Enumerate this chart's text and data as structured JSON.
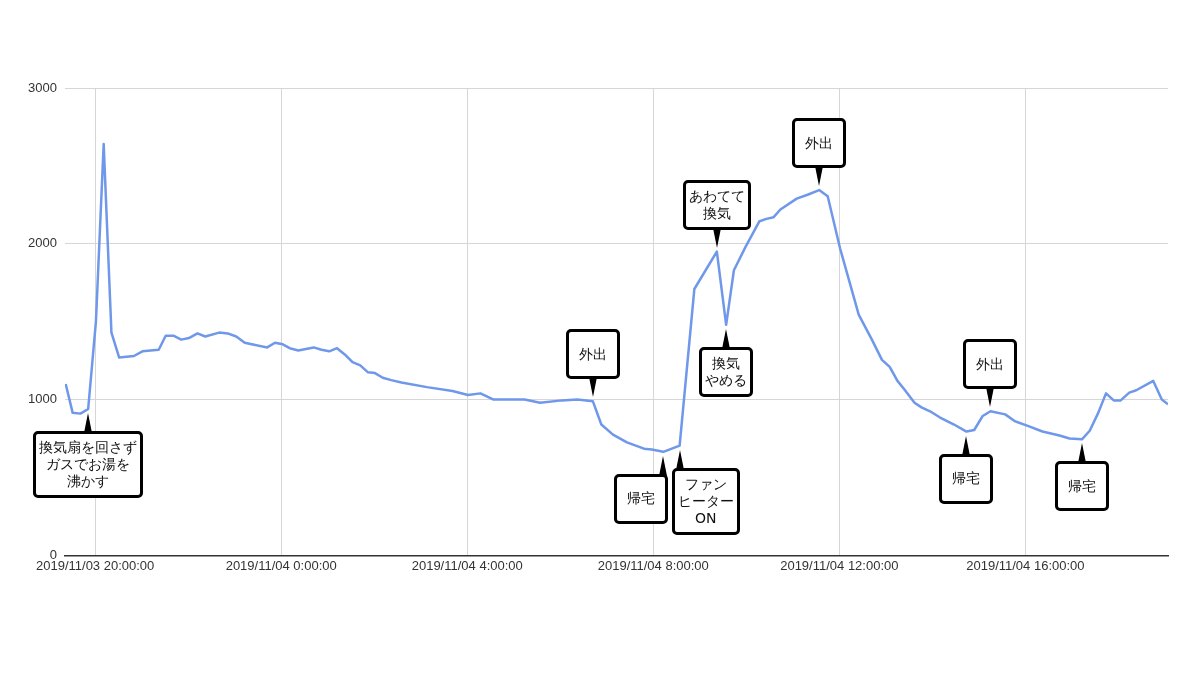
{
  "chart_data": {
    "type": "line",
    "series": [
      {
        "color": "#6f97ea",
        "x": [
          "2019-11-03T19:22",
          "2019-11-03T19:31",
          "2019-11-03T19:41",
          "2019-11-03T19:51",
          "2019-11-03T20:01",
          "2019-11-03T20:11",
          "2019-11-03T20:21",
          "2019-11-03T20:31",
          "2019-11-03T20:50",
          "2019-11-03T21:01",
          "2019-11-03T21:22",
          "2019-11-03T21:31",
          "2019-11-03T21:41",
          "2019-11-03T21:51",
          "2019-11-03T22:01",
          "2019-11-03T22:12",
          "2019-11-03T22:22",
          "2019-11-03T22:40",
          "2019-11-03T22:51",
          "2019-11-03T23:02",
          "2019-11-03T23:13",
          "2019-11-03T23:22",
          "2019-11-03T23:42",
          "2019-11-03T23:52",
          "2019-11-04T00:02",
          "2019-11-04T00:11",
          "2019-11-04T00:22",
          "2019-11-04T00:42",
          "2019-11-04T00:52",
          "2019-11-04T01:02",
          "2019-11-04T01:12",
          "2019-11-04T01:22",
          "2019-11-04T01:32",
          "2019-11-04T01:42",
          "2019-11-04T01:52",
          "2019-11-04T02:01",
          "2019-11-04T02:11",
          "2019-11-04T02:22",
          "2019-11-04T02:35",
          "2019-11-04T03:08",
          "2019-11-04T03:41",
          "2019-11-04T04:01",
          "2019-11-04T04:17",
          "2019-11-04T04:34",
          "2019-11-04T05:14",
          "2019-11-04T05:34",
          "2019-11-04T06:02",
          "2019-11-04T06:22",
          "2019-11-04T06:42",
          "2019-11-04T06:53",
          "2019-11-04T07:08",
          "2019-11-04T07:26",
          "2019-11-04T07:48",
          "2019-11-04T07:58",
          "2019-11-04T08:13",
          "2019-11-04T08:34",
          "2019-11-04T08:53",
          "2019-11-04T09:22",
          "2019-11-04T09:34",
          "2019-11-04T09:44",
          "2019-11-04T09:59",
          "2019-11-04T10:17",
          "2019-11-04T10:26",
          "2019-11-04T10:35",
          "2019-11-04T10:44",
          "2019-11-04T11:05",
          "2019-11-04T11:19",
          "2019-11-04T11:34",
          "2019-11-04T11:45",
          "2019-11-04T12:01",
          "2019-11-04T12:25",
          "2019-11-04T12:42",
          "2019-11-04T12:55",
          "2019-11-04T13:05",
          "2019-11-04T13:15",
          "2019-11-04T13:24",
          "2019-11-04T13:37",
          "2019-11-04T13:46",
          "2019-11-04T13:57",
          "2019-11-04T14:10",
          "2019-11-04T14:28",
          "2019-11-04T14:44",
          "2019-11-04T14:54",
          "2019-11-04T15:05",
          "2019-11-04T15:15",
          "2019-11-04T15:34",
          "2019-11-04T15:47",
          "2019-11-04T16:04",
          "2019-11-04T16:22",
          "2019-11-04T16:44",
          "2019-11-04T16:57",
          "2019-11-04T17:13",
          "2019-11-04T17:23",
          "2019-11-04T17:34",
          "2019-11-04T17:44",
          "2019-11-04T17:54",
          "2019-11-04T18:03",
          "2019-11-04T18:14",
          "2019-11-04T18:23",
          "2019-11-04T18:45",
          "2019-11-04T18:56",
          "2019-11-04T19:04"
        ],
        "values": [
          1100,
          915,
          910,
          940,
          1500,
          2640,
          1430,
          1270,
          1280,
          1310,
          1320,
          1410,
          1410,
          1385,
          1395,
          1425,
          1405,
          1430,
          1425,
          1405,
          1365,
          1355,
          1335,
          1365,
          1355,
          1330,
          1315,
          1335,
          1320,
          1310,
          1330,
          1290,
          1240,
          1220,
          1175,
          1170,
          1140,
          1125,
          1110,
          1080,
          1055,
          1030,
          1040,
          1000,
          1000,
          980,
          995,
          1000,
          990,
          840,
          775,
          725,
          685,
          680,
          665,
          705,
          1710,
          1950,
          1480,
          1830,
          1980,
          2145,
          2160,
          2170,
          2220,
          2290,
          2315,
          2345,
          2305,
          1970,
          1545,
          1385,
          1255,
          1210,
          1120,
          1065,
          980,
          950,
          925,
          885,
          840,
          795,
          805,
          895,
          925,
          905,
          860,
          830,
          795,
          770,
          750,
          745,
          800,
          915,
          1040,
          995,
          995,
          1045,
          1060,
          1120,
          1000,
          970
        ]
      }
    ],
    "xlim": [
      "2019-11-03T19:21",
      "2019-11-04T19:04"
    ],
    "xticks": [
      {
        "value": "2019-11-03T20:00",
        "label": "2019/11/03 20:00:00"
      },
      {
        "value": "2019-11-04T00:00",
        "label": "2019/11/04 0:00:00"
      },
      {
        "value": "2019-11-04T04:00",
        "label": "2019/11/04 4:00:00"
      },
      {
        "value": "2019-11-04T08:00",
        "label": "2019/11/04 8:00:00"
      },
      {
        "value": "2019-11-04T12:00",
        "label": "2019/11/04 12:00:00"
      },
      {
        "value": "2019-11-04T16:00",
        "label": "2019/11/04 16:00:00"
      }
    ],
    "ylim": [
      0,
      3000
    ],
    "yticks": [
      0,
      1000,
      2000,
      3000
    ],
    "grid": true,
    "legend": false,
    "marker": "none",
    "line_style": "solid",
    "annotations": [
      {
        "text": "換気扇を回さずガスでお湯を沸かす",
        "x": "2019-11-03T19:51",
        "y": 940
      },
      {
        "text": "外出",
        "x": "2019-11-04T06:42",
        "y": 990
      },
      {
        "text": "帰宅",
        "x": "2019-11-04T08:13",
        "y": 665
      },
      {
        "text": "ファンヒーターON",
        "x": "2019-11-04T08:34",
        "y": 705
      },
      {
        "text": "あわてて換気",
        "x": "2019-11-04T09:22",
        "y": 1950
      },
      {
        "text": "換気やめる",
        "x": "2019-11-04T09:34",
        "y": 1480
      },
      {
        "text": "外出",
        "x": "2019-11-04T11:34",
        "y": 2345
      },
      {
        "text": "帰宅",
        "x": "2019-11-04T14:44",
        "y": 795
      },
      {
        "text": "外出",
        "x": "2019-11-04T15:15",
        "y": 925
      },
      {
        "text": "帰宅",
        "x": "2019-11-04T17:13",
        "y": 745
      }
    ]
  }
}
